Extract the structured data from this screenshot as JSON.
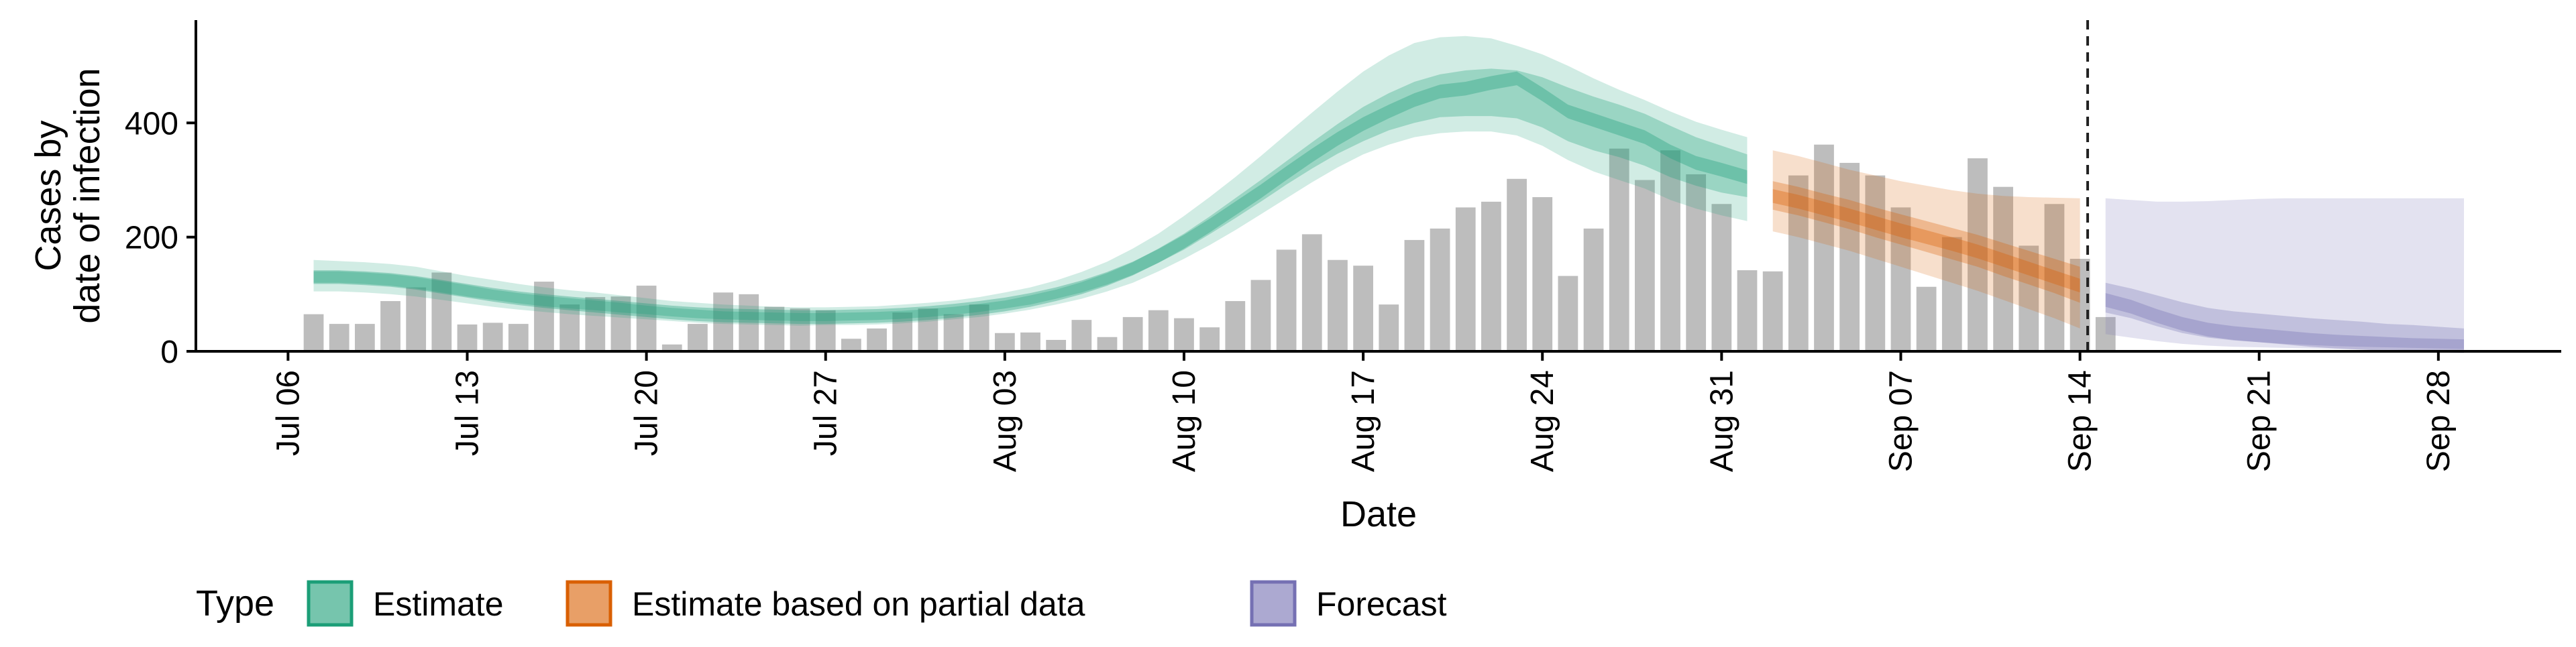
{
  "chart_data": {
    "type": "bar+ribbon",
    "xlabel": "Date",
    "ylabel_line1": "Cases by",
    "ylabel_line2": "date of infection",
    "ylim": [
      0,
      580
    ],
    "yticks": [
      0,
      200,
      400
    ],
    "x_ticks": [
      {
        "day": 0,
        "label": "Jul 06"
      },
      {
        "day": 7,
        "label": "Jul 13"
      },
      {
        "day": 14,
        "label": "Jul 20"
      },
      {
        "day": 21,
        "label": "Jul 27"
      },
      {
        "day": 28,
        "label": "Aug 03"
      },
      {
        "day": 35,
        "label": "Aug 10"
      },
      {
        "day": 42,
        "label": "Aug 17"
      },
      {
        "day": 49,
        "label": "Aug 24"
      },
      {
        "day": 56,
        "label": "Aug 31"
      },
      {
        "day": 63,
        "label": "Sep 07"
      },
      {
        "day": 70,
        "label": "Sep 14"
      },
      {
        "day": 77,
        "label": "Sep 21"
      },
      {
        "day": 84,
        "label": "Sep 28"
      }
    ],
    "xlim": [
      -3.6,
      88.8
    ],
    "vline_day": 70.3,
    "bars_start_day": 1,
    "bars": [
      65,
      48,
      48,
      88,
      112,
      138,
      47,
      50,
      48,
      122,
      82,
      95,
      96,
      115,
      12,
      48,
      103,
      100,
      78,
      75,
      72,
      22,
      40,
      68,
      75,
      65,
      82,
      32,
      33,
      20,
      55,
      25,
      60,
      72,
      58,
      42,
      88,
      125,
      178,
      205,
      160,
      150,
      82,
      195,
      215,
      252,
      262,
      302,
      270,
      132,
      215,
      355,
      300,
      352,
      310,
      258,
      142,
      140,
      308,
      362,
      330,
      308,
      252,
      113,
      200,
      338,
      288,
      185,
      258,
      162,
      60
    ],
    "legend_title": "Type",
    "legend": [
      {
        "label": "Estimate",
        "color": "#1b9e77"
      },
      {
        "label": "Estimate based on partial data",
        "color": "#d95f02"
      },
      {
        "label": "Forecast",
        "color": "#7570b3"
      }
    ],
    "series": [
      {
        "name": "Estimate",
        "color": "#1b9e77",
        "x": [
          1,
          2,
          3,
          4,
          5,
          6,
          7,
          8,
          9,
          10,
          11,
          12,
          13,
          14,
          15,
          16,
          17,
          18,
          19,
          20,
          21,
          22,
          23,
          24,
          25,
          26,
          27,
          28,
          29,
          30,
          31,
          32,
          33,
          34,
          35,
          36,
          37,
          38,
          39,
          40,
          41,
          42,
          43,
          44,
          45,
          46,
          47,
          48,
          49,
          50,
          51,
          52,
          53,
          54,
          55,
          56,
          57
        ],
        "median": [
          130,
          130,
          128,
          125,
          120,
          113,
          106,
          99,
          93,
          88,
          84,
          80,
          76,
          72,
          68,
          65,
          63,
          62,
          61,
          60,
          60,
          61,
          62,
          64,
          67,
          71,
          76,
          82,
          90,
          100,
          112,
          127,
          145,
          167,
          192,
          220,
          250,
          280,
          312,
          343,
          372,
          398,
          420,
          440,
          455,
          460,
          470,
          478,
          450,
          420,
          405,
          390,
          375,
          350,
          330,
          318,
          305
        ],
        "inner_low": [
          120,
          120,
          118,
          115,
          110,
          103,
          96,
          90,
          84,
          79,
          75,
          72,
          68,
          65,
          61,
          58,
          56,
          55,
          54,
          53,
          53,
          54,
          55,
          57,
          60,
          64,
          69,
          75,
          82,
          92,
          103,
          117,
          134,
          155,
          178,
          205,
          233,
          262,
          292,
          320,
          346,
          368,
          387,
          400,
          410,
          412,
          412,
          408,
          392,
          368,
          352,
          340,
          325,
          305,
          290,
          278,
          270
        ],
        "inner_high": [
          140,
          140,
          138,
          135,
          130,
          123,
          116,
          108,
          102,
          97,
          93,
          89,
          85,
          80,
          76,
          73,
          70,
          69,
          68,
          67,
          67,
          68,
          69,
          71,
          74,
          78,
          83,
          89,
          98,
          108,
          121,
          137,
          156,
          180,
          206,
          236,
          268,
          300,
          333,
          366,
          398,
          428,
          452,
          472,
          485,
          492,
          495,
          492,
          480,
          462,
          446,
          432,
          416,
          395,
          375,
          360,
          345
        ],
        "outer_low": [
          105,
          105,
          103,
          100,
          96,
          90,
          84,
          78,
          73,
          69,
          65,
          62,
          59,
          56,
          53,
          50,
          48,
          47,
          46,
          45,
          46,
          46,
          47,
          49,
          52,
          56,
          60,
          66,
          73,
          82,
          92,
          105,
          120,
          140,
          162,
          186,
          212,
          240,
          268,
          296,
          322,
          345,
          362,
          375,
          382,
          385,
          385,
          378,
          360,
          335,
          315,
          300,
          285,
          265,
          250,
          238,
          228
        ],
        "outer_high": [
          160,
          158,
          156,
          153,
          148,
          140,
          132,
          125,
          118,
          112,
          107,
          103,
          98,
          93,
          88,
          85,
          82,
          80,
          78,
          77,
          77,
          78,
          79,
          82,
          85,
          89,
          95,
          103,
          112,
          124,
          139,
          157,
          180,
          206,
          237,
          270,
          305,
          342,
          380,
          418,
          455,
          490,
          518,
          540,
          550,
          552,
          548,
          535,
          520,
          500,
          478,
          458,
          440,
          420,
          402,
          388,
          375
        ]
      },
      {
        "name": "Estimate based on partial data",
        "color": "#d95f02",
        "x": [
          58,
          59,
          60,
          61,
          62,
          63,
          64,
          65,
          66,
          67,
          68,
          69,
          70
        ],
        "median": [
          272,
          262,
          250,
          238,
          225,
          212,
          200,
          188,
          175,
          160,
          145,
          130,
          115
        ],
        "inner_low": [
          248,
          238,
          226,
          214,
          200,
          187,
          174,
          161,
          148,
          132,
          117,
          102,
          85
        ],
        "inner_high": [
          298,
          288,
          276,
          265,
          252,
          240,
          228,
          216,
          204,
          190,
          176,
          162,
          148
        ],
        "outer_low": [
          210,
          200,
          188,
          176,
          162,
          148,
          134,
          120,
          106,
          90,
          74,
          58,
          40
        ],
        "outer_high": [
          352,
          342,
          330,
          318,
          308,
          298,
          290,
          282,
          276,
          272,
          270,
          269,
          268
        ]
      },
      {
        "name": "Forecast",
        "color": "#7570b3",
        "x": [
          71,
          72,
          73,
          74,
          75,
          76,
          77,
          78,
          79,
          80,
          81,
          82,
          83,
          84,
          85
        ],
        "median": [
          90,
          78,
          62,
          48,
          38,
          32,
          28,
          24,
          20,
          17,
          15,
          13,
          11,
          10,
          9
        ],
        "inner_low": [
          68,
          58,
          44,
          32,
          24,
          19,
          16,
          13,
          11,
          9,
          8,
          7,
          6,
          5,
          4
        ],
        "inner_high": [
          120,
          110,
          98,
          86,
          76,
          70,
          66,
          62,
          58,
          55,
          52,
          48,
          46,
          43,
          40
        ],
        "outer_low": [
          30,
          24,
          18,
          13,
          10,
          8,
          7,
          6,
          5,
          4,
          3,
          3,
          2,
          2,
          2
        ],
        "outer_high": [
          268,
          265,
          262,
          262,
          263,
          265,
          267,
          268,
          268,
          268,
          268,
          268,
          268,
          268,
          268
        ]
      }
    ]
  }
}
